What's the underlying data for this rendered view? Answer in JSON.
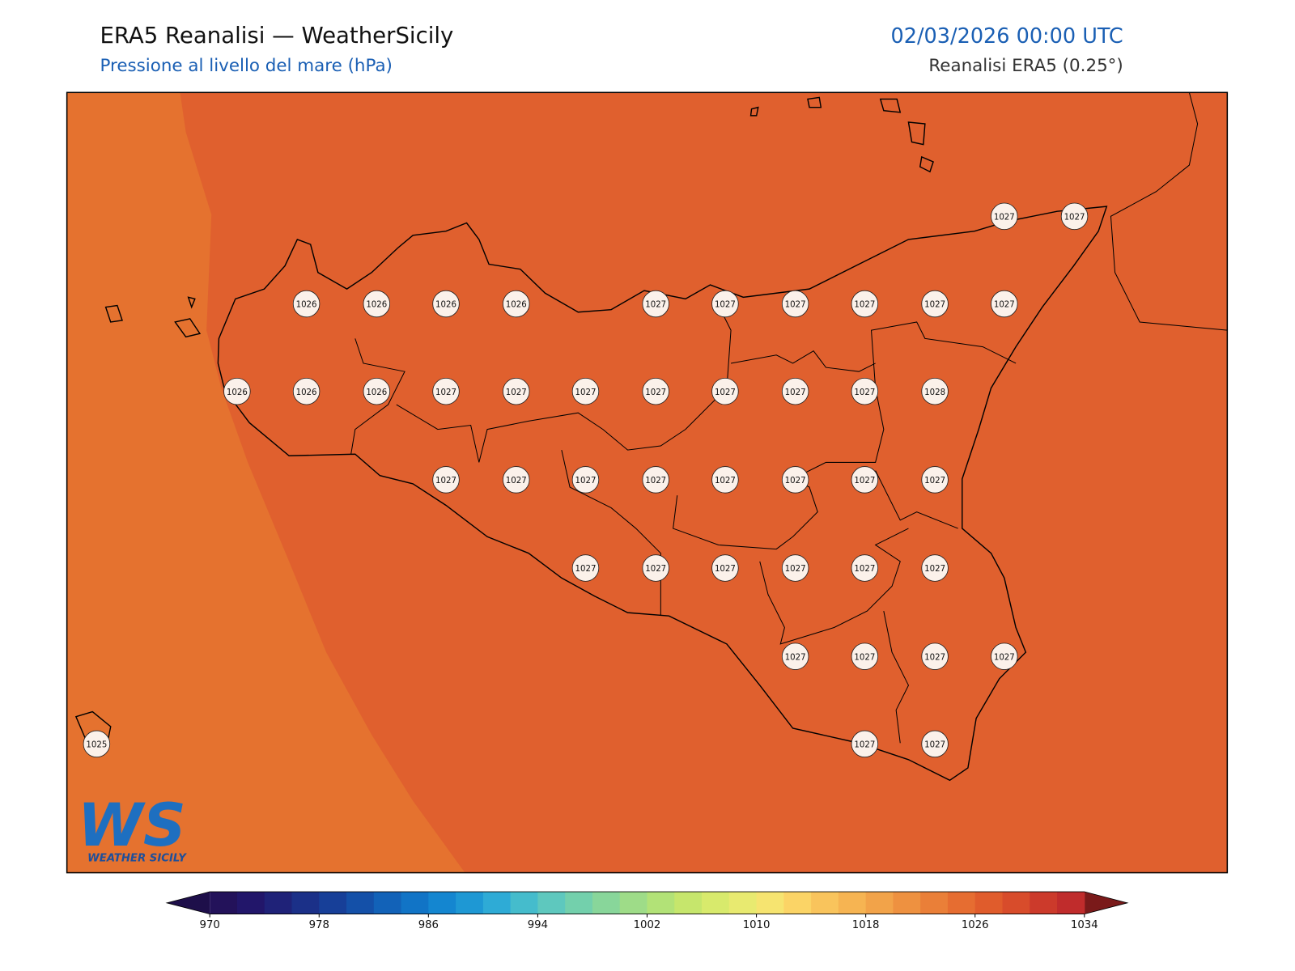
{
  "header": {
    "title": "ERA5 Reanalisi — WeatherSicily",
    "subtitle": "Pressione al livello del mare (hPa)",
    "datetime": "02/03/2026 00:00 UTC",
    "source": "Reanalisi ERA5 (0.25°)"
  },
  "map": {
    "background_color": "#e0602e",
    "west_band_color": "#e5722f",
    "stations": [
      1027,
      1027,
      1026,
      1026,
      1026,
      1026,
      1027,
      1027,
      1027,
      1027,
      1027,
      1027,
      1026,
      1026,
      1026,
      1027,
      1027,
      1027,
      1027,
      1027,
      1027,
      1027,
      1028,
      1027,
      1027,
      1027,
      1027,
      1027,
      1027,
      1027,
      1027,
      1027,
      1027,
      1027,
      1027,
      1027,
      1027,
      1027,
      1027,
      1027,
      1027,
      1025,
      1027,
      1027
    ]
  },
  "logo": {
    "mark": "WS",
    "text": "WEATHER SICILY"
  },
  "colorbar": {
    "ticks": [
      970,
      978,
      986,
      994,
      1002,
      1010,
      1018,
      1026,
      1034
    ],
    "under_color": "#1e0f4a",
    "over_color": "#7a1a1a",
    "colors": [
      "#23125a",
      "#22166a",
      "#1f2278",
      "#1b3088",
      "#173f98",
      "#1450a8",
      "#1262b8",
      "#1174c6",
      "#1486d0",
      "#1e98d4",
      "#2eabd6",
      "#45bccc",
      "#5ec8be",
      "#73d0ac",
      "#88d69a",
      "#9edc88",
      "#b2e277",
      "#c6e66c",
      "#d8ea6c",
      "#e8ea70",
      "#f6e470",
      "#fbd466",
      "#f9c45c",
      "#f6b452",
      "#f2a349",
      "#ee9140",
      "#ea7f38",
      "#e66d31",
      "#e05c2c",
      "#d84c2b",
      "#cc3a2b",
      "#c02c2c"
    ]
  }
}
